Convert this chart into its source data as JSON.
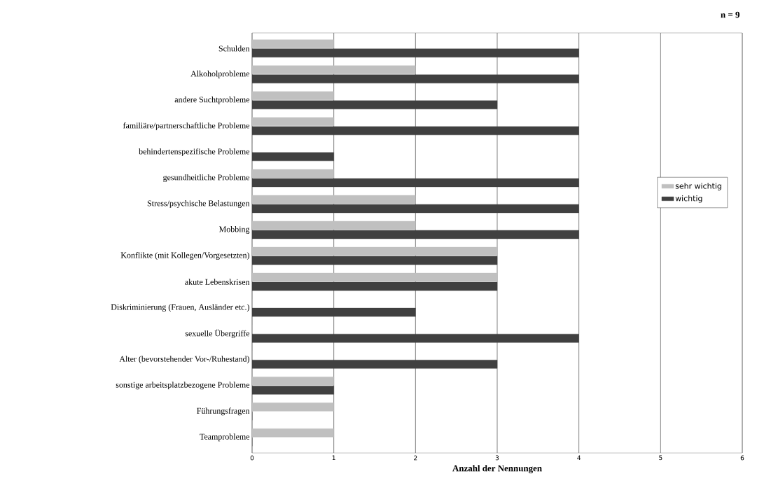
{
  "chart_data": {
    "type": "bar",
    "orientation": "horizontal",
    "xlabel": "Anzahl der Nennungen",
    "annotations": [
      "n = 9"
    ],
    "categories": [
      "Schulden",
      "Alkoholprobleme",
      "andere Suchtprobleme",
      "familiäre/partnerschaftliche Probleme",
      "behindertenspezifische Probleme",
      "gesundheitliche Probleme",
      "Stress/psychische Belastungen",
      "Mobbing",
      "Konflikte (mit Kollegen/Vorgesetzten)",
      "akute Lebenskrisen",
      "Diskriminierung (Frauen, Ausländer etc.)",
      "sexuelle Übergriffe",
      "Alter (bevorstehender Vor-/Ruhestand)",
      "sonstige arbeitsplatzbezogene Probleme",
      "Führungsfragen",
      "Teamprobleme"
    ],
    "series": [
      {
        "name": "sehr wichtig",
        "color": "#c0c0c0",
        "values": [
          1,
          2,
          1,
          1,
          0,
          1,
          2,
          2,
          3,
          3,
          0,
          0,
          0,
          1,
          1,
          1
        ]
      },
      {
        "name": "wichtig",
        "color": "#404040",
        "values": [
          4,
          4,
          3,
          4,
          1,
          4,
          4,
          4,
          3,
          3,
          2,
          4,
          3,
          1,
          0,
          0
        ]
      }
    ],
    "xlim": [
      0,
      6
    ],
    "xticks": [
      0,
      1,
      2,
      3,
      4,
      5,
      6
    ],
    "grid": "x",
    "legend": "right"
  }
}
